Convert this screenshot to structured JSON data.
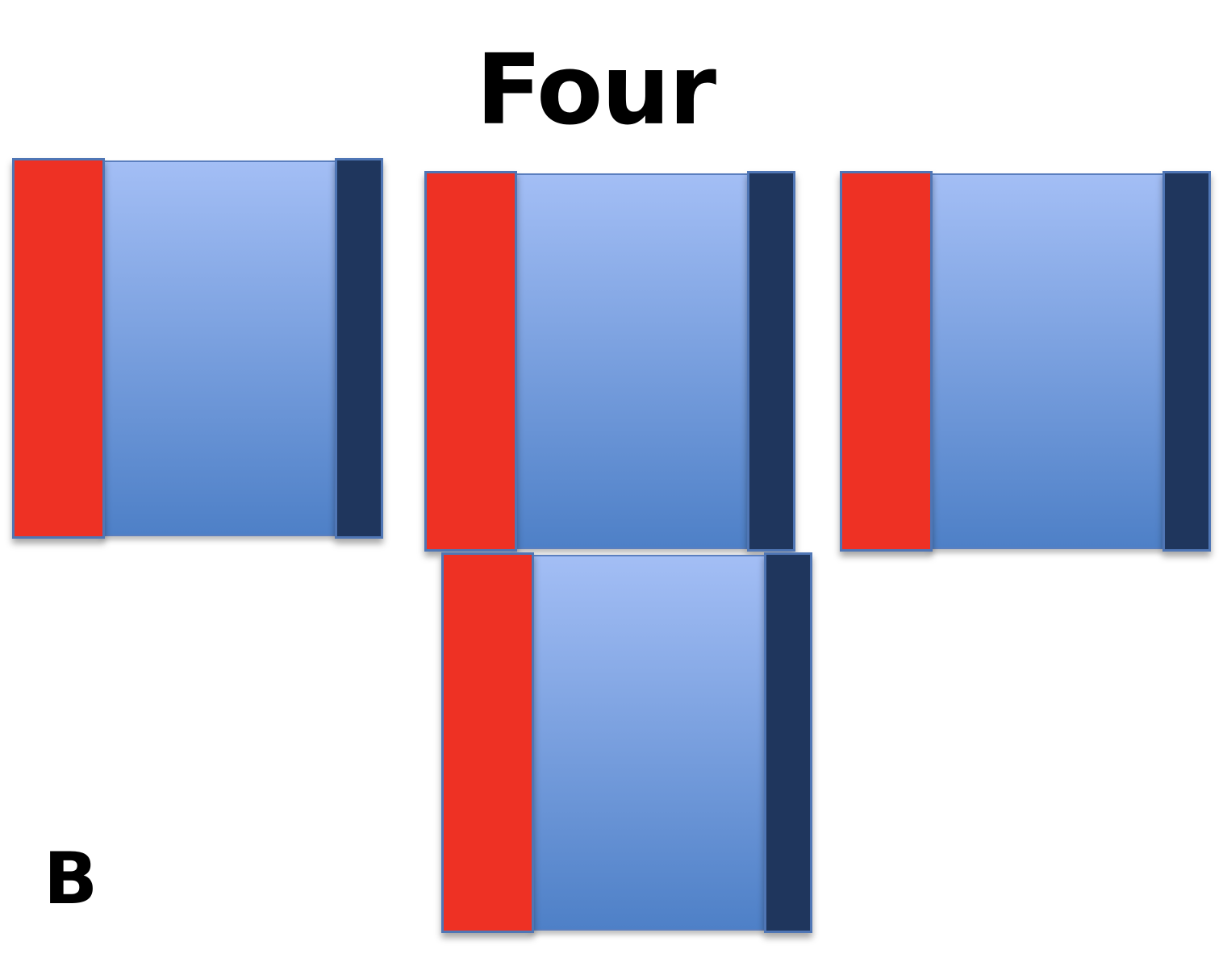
{
  "title": "Four",
  "panel_label": "B",
  "colors": {
    "left_bar": "#ee3124",
    "right_bar": "#1f365d",
    "middle_top": "#a3bef5",
    "middle_bottom": "#4e80c7",
    "outline": "#4f76b5"
  },
  "blocks": [
    {
      "name": "block-1"
    },
    {
      "name": "block-2"
    },
    {
      "name": "block-3"
    },
    {
      "name": "block-4"
    }
  ]
}
